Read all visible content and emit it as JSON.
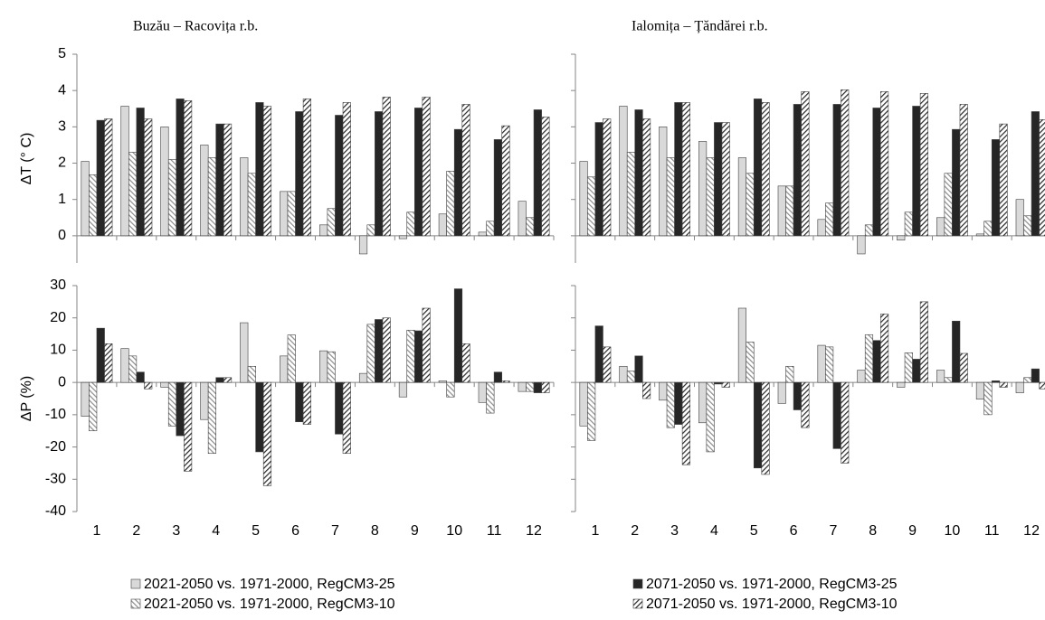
{
  "chart_data": [
    {
      "type": "bar",
      "title": "Buzău – Racovița r.b.",
      "ylabel": "ΔT (° C)",
      "ylim": [
        -0.75,
        5
      ],
      "yticks": [
        0,
        1,
        2,
        3,
        4,
        5
      ],
      "ytick_labels": true,
      "series": [
        {
          "name": "2021-2050 vs. 1971-2000, RegCM3-25",
          "color": "#d9d9d9",
          "hatch": "none",
          "values": [
            2.05,
            3.57,
            3.0,
            2.5,
            2.15,
            1.22,
            0.3,
            -0.5,
            -0.08,
            0.6,
            0.1,
            0.95
          ]
        },
        {
          "name": "2021-2050 vs. 1971-2000, RegCM3-10",
          "color": "#8c8c8c",
          "hatch": "backward",
          "values": [
            1.68,
            2.3,
            2.1,
            2.15,
            1.72,
            1.22,
            0.75,
            0.3,
            0.65,
            1.78,
            0.4,
            0.5
          ]
        },
        {
          "name": "2071-2050 vs. 1971-2000, RegCM3-25",
          "color": "#262626",
          "hatch": "none",
          "values": [
            3.18,
            3.52,
            3.77,
            3.08,
            3.67,
            3.42,
            3.32,
            3.42,
            3.52,
            2.93,
            2.65,
            3.47
          ]
        },
        {
          "name": "2071-2050 vs. 1971-2000, RegCM3-10",
          "color": "#262626",
          "hatch": "forward",
          "values": [
            3.22,
            3.22,
            3.72,
            3.08,
            3.57,
            3.77,
            3.67,
            3.82,
            3.82,
            3.62,
            3.03,
            3.27
          ]
        }
      ]
    },
    {
      "type": "bar",
      "title": "Ialomița – Țăndărei r.b.",
      "ylim": [
        -0.75,
        5
      ],
      "yticks": [
        0,
        1,
        2,
        3,
        4,
        5
      ],
      "ytick_labels": false,
      "series": [
        {
          "color": "#d9d9d9",
          "hatch": "none",
          "values": [
            2.05,
            3.57,
            3.0,
            2.6,
            2.15,
            1.37,
            0.45,
            -0.5,
            -0.12,
            0.5,
            0.05,
            1.0
          ]
        },
        {
          "color": "#8c8c8c",
          "hatch": "backward",
          "values": [
            1.62,
            2.3,
            2.15,
            2.15,
            1.72,
            1.37,
            0.9,
            0.3,
            0.65,
            1.72,
            0.4,
            0.55
          ]
        },
        {
          "color": "#262626",
          "hatch": "none",
          "values": [
            3.12,
            3.47,
            3.67,
            3.12,
            3.77,
            3.62,
            3.62,
            3.52,
            3.57,
            2.93,
            2.65,
            3.42
          ]
        },
        {
          "color": "#262626",
          "hatch": "forward",
          "values": [
            3.22,
            3.22,
            3.67,
            3.12,
            3.67,
            3.97,
            4.02,
            3.97,
            3.92,
            3.62,
            3.08,
            3.2
          ]
        }
      ]
    },
    {
      "type": "bar",
      "ylabel": "ΔP (%)",
      "ylim": [
        -40,
        30
      ],
      "yticks": [
        -40,
        -30,
        -20,
        -10,
        0,
        10,
        20,
        30
      ],
      "ytick_labels": true,
      "categories": [
        "1",
        "2",
        "3",
        "4",
        "5",
        "6",
        "7",
        "8",
        "9",
        "10",
        "11",
        "12"
      ],
      "series": [
        {
          "color": "#d9d9d9",
          "hatch": "none",
          "values": [
            -10.5,
            10.5,
            -1.5,
            -11.5,
            18.5,
            8.2,
            9.8,
            2.8,
            -4.5,
            0.5,
            -6.2,
            -2.8
          ]
        },
        {
          "color": "#8c8c8c",
          "hatch": "backward",
          "values": [
            -15,
            8.2,
            -13.5,
            -22,
            5,
            14.7,
            9.5,
            18,
            16.2,
            -4.5,
            -9.5,
            -2.8
          ]
        },
        {
          "color": "#262626",
          "hatch": "none",
          "values": [
            16.8,
            3.2,
            -16.5,
            1.5,
            -21.5,
            -12.2,
            -16,
            19.5,
            16,
            29,
            3.2,
            -3.2
          ]
        },
        {
          "color": "#262626",
          "hatch": "forward",
          "values": [
            12,
            -2,
            -27.5,
            1.5,
            -32,
            -13,
            -22,
            20,
            23,
            12,
            0.5,
            -3.2
          ]
        }
      ]
    },
    {
      "type": "bar",
      "ylim": [
        -40,
        30
      ],
      "yticks": [
        -40,
        -30,
        -20,
        -10,
        0,
        10,
        20,
        30
      ],
      "ytick_labels": false,
      "categories": [
        "1",
        "2",
        "3",
        "4",
        "5",
        "6",
        "7",
        "8",
        "9",
        "10",
        "11",
        "12"
      ],
      "series": [
        {
          "color": "#d9d9d9",
          "hatch": "none",
          "values": [
            -13.5,
            5,
            -5.5,
            -12.5,
            23,
            -6.5,
            11.5,
            3.8,
            -1.5,
            3.8,
            -5.2,
            -3.2
          ]
        },
        {
          "color": "#8c8c8c",
          "hatch": "backward",
          "values": [
            -18,
            3.5,
            -14,
            -21.5,
            12.5,
            5,
            11,
            14.8,
            9.2,
            1.5,
            -10,
            1.5
          ]
        },
        {
          "color": "#262626",
          "hatch": "none",
          "values": [
            17.5,
            8.2,
            -13,
            -0.5,
            -26.5,
            -8.5,
            -20.5,
            13,
            7.2,
            19,
            0.5,
            4.2
          ]
        },
        {
          "color": "#262626",
          "hatch": "forward",
          "values": [
            11,
            -5,
            -25.5,
            -1.5,
            -28.5,
            -14,
            -25,
            21.2,
            25,
            9,
            -1.5,
            -2
          ]
        }
      ]
    }
  ]
}
